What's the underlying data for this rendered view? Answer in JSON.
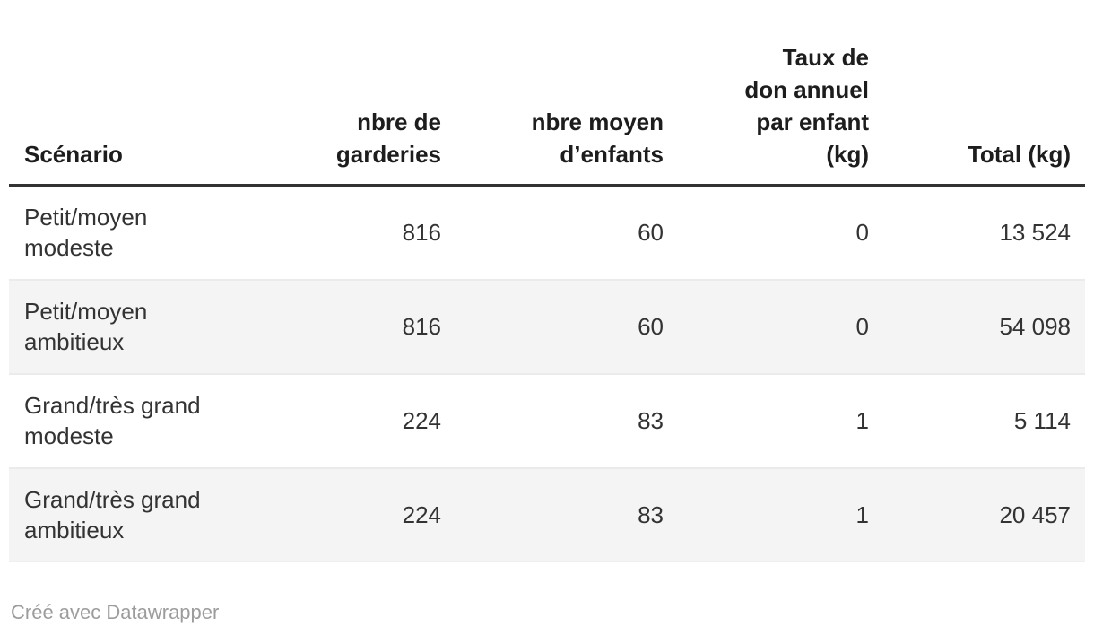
{
  "chart_data": {
    "type": "table",
    "title": "",
    "columns": [
      "Scénario",
      "nbre de garderies",
      "nbre moyen d’enfants",
      "Taux de don annuel par enfant (kg)",
      "Total (kg)"
    ],
    "rows": [
      [
        "Petit/moyen modeste",
        816,
        60,
        0,
        13524
      ],
      [
        "Petit/moyen ambitieux",
        816,
        60,
        0,
        54098
      ],
      [
        "Grand/très grand modeste",
        224,
        83,
        1,
        5114
      ],
      [
        "Grand/très grand ambitieux",
        224,
        83,
        1,
        20457
      ]
    ],
    "layout_hints": {
      "zebra_striping": true,
      "numeric_columns_right_aligned": true,
      "header_rule": true
    }
  },
  "table": {
    "columns": [
      {
        "label": "Scénario"
      },
      {
        "label": "nbre de\ngarderies"
      },
      {
        "label": "nbre moyen\nd’enfants"
      },
      {
        "label": "Taux de\ndon annuel\npar enfant\n(kg)"
      },
      {
        "label": "Total (kg)"
      }
    ],
    "rows": [
      {
        "label": "Petit/moyen\nmodeste",
        "values": [
          "816",
          "60",
          "0",
          "13 524"
        ]
      },
      {
        "label": "Petit/moyen\nambitieux",
        "values": [
          "816",
          "60",
          "0",
          "54 098"
        ]
      },
      {
        "label": "Grand/très grand\nmodeste",
        "values": [
          "224",
          "83",
          "1",
          "5 114"
        ]
      },
      {
        "label": "Grand/très grand\nambitieux",
        "values": [
          "224",
          "83",
          "1",
          "20 457"
        ]
      }
    ]
  },
  "footer": {
    "attribution": "Créé avec Datawrapper"
  },
  "colors": {
    "background": "#ffffff",
    "header_text": "#1d1d1d",
    "body_text": "#333333",
    "header_rule": "#333333",
    "zebra_stripe": "#f4f4f4",
    "row_divider": "#ebebeb",
    "attribution_text": "#9c9c9c"
  }
}
